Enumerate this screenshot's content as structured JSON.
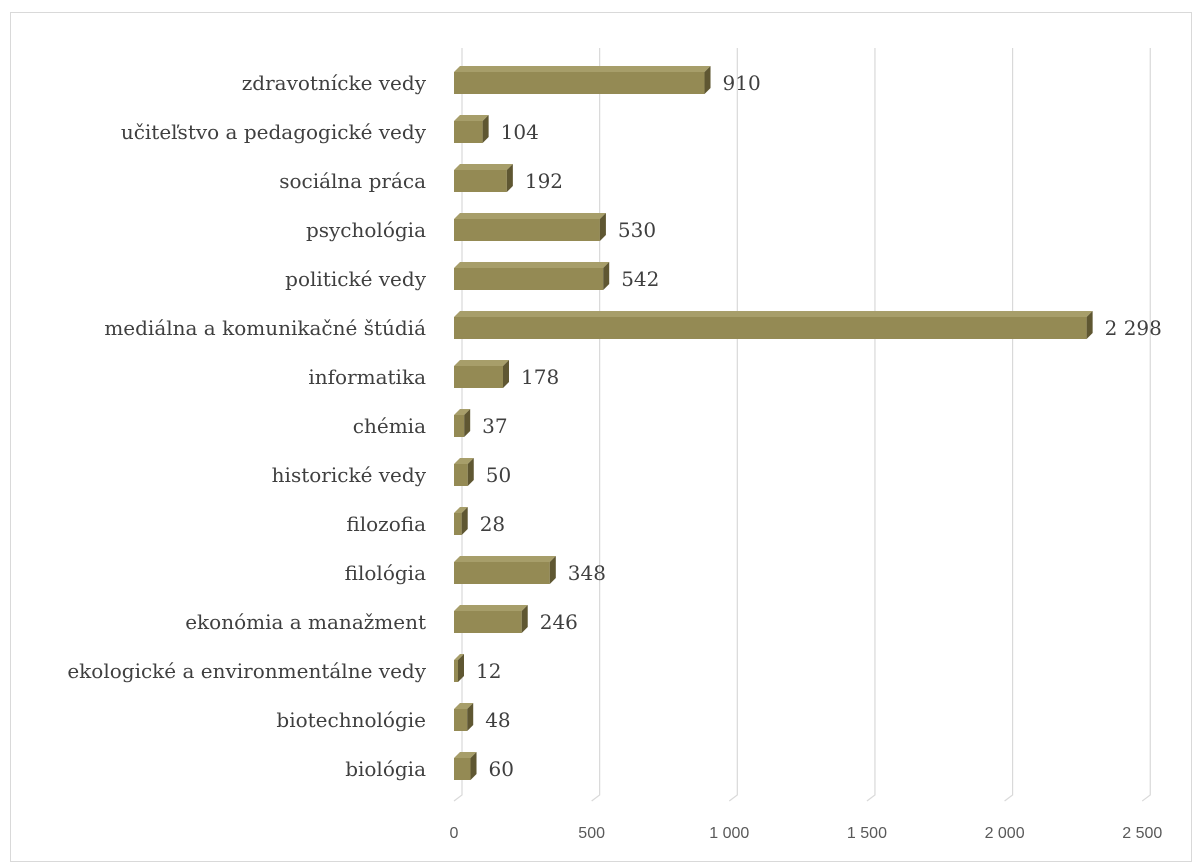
{
  "chart_data": {
    "type": "bar",
    "orientation": "horizontal",
    "style": "3d",
    "title": "",
    "xlabel": "",
    "ylabel": "",
    "categories": [
      "zdravotnícke vedy",
      "učiteľstvo a pedagogické vedy",
      "sociálna práca",
      "psychológia",
      "politické vedy",
      "mediálna a komunikačné štúdiá",
      "informatika",
      "chémia",
      "historické vedy",
      "filozofia",
      "filológia",
      "ekonómia a manažment",
      "ekologické a environmentálne vedy",
      "biotechnológie",
      "biológia"
    ],
    "values": [
      910,
      104,
      192,
      530,
      542,
      2298,
      178,
      37,
      50,
      28,
      348,
      246,
      12,
      48,
      60
    ],
    "value_labels": [
      "910",
      "104",
      "192",
      "530",
      "542",
      "2 298",
      "178",
      "37",
      "50",
      "28",
      "348",
      "246",
      "12",
      "48",
      "60"
    ],
    "xlim": [
      0,
      2500
    ],
    "xticks": [
      0,
      500,
      1000,
      1500,
      2000,
      2500
    ],
    "xtick_labels": [
      "0",
      "500",
      "1 000",
      "1 500",
      "2 000",
      "2 500"
    ],
    "grid": true,
    "legend": "none",
    "colors": {
      "bar_front": "#948a54",
      "bar_top": "#a79e6a",
      "bar_side": "#5f5732",
      "grid": "#d9d9d9",
      "text": "#3f3f3f"
    }
  }
}
